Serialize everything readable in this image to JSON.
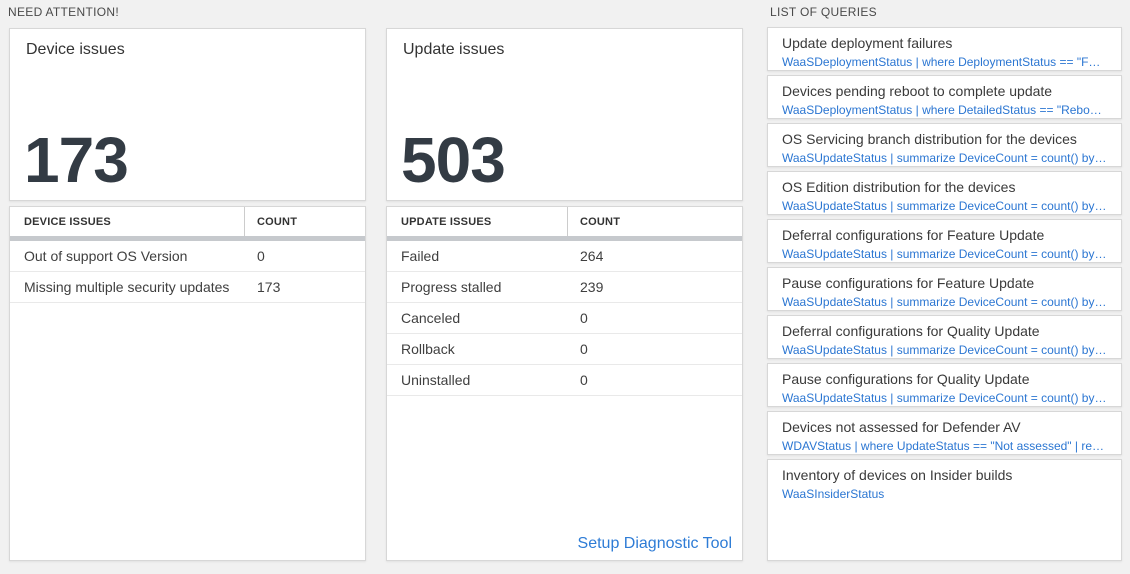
{
  "need_attention": {
    "header": "NEED ATTENTION!",
    "cards": [
      {
        "title": "Device issues",
        "value": "173",
        "table": {
          "columns": [
            "DEVICE ISSUES",
            "COUNT"
          ],
          "rows": [
            [
              "Out of support OS Version",
              "0"
            ],
            [
              "Missing multiple security updates",
              "173"
            ]
          ]
        }
      },
      {
        "title": "Update issues",
        "value": "503",
        "table": {
          "columns": [
            "UPDATE ISSUES",
            "COUNT"
          ],
          "rows": [
            [
              "Failed",
              "264"
            ],
            [
              "Progress stalled",
              "239"
            ],
            [
              "Canceled",
              "0"
            ],
            [
              "Rollback",
              "0"
            ],
            [
              "Uninstalled",
              "0"
            ]
          ]
        },
        "footer_link": "Setup Diagnostic Tool"
      }
    ]
  },
  "queries": {
    "header": "LIST OF QUERIES",
    "items": [
      {
        "title": "Update deployment failures",
        "query": "WaaSDeploymentStatus | where DeploymentStatus == \"Failed\" |..."
      },
      {
        "title": "Devices pending reboot to complete update",
        "query": "WaaSDeploymentStatus | where DetailedStatus == \"Reboot pend..."
      },
      {
        "title": "OS Servicing branch distribution for the devices",
        "query": "WaaSUpdateStatus | summarize DeviceCount = count() by OSSer..."
      },
      {
        "title": "OS Edition distribution for the devices",
        "query": "WaaSUpdateStatus | summarize DeviceCount = count() by OSEdit..."
      },
      {
        "title": "Deferral configurations for Feature Update",
        "query": "WaaSUpdateStatus | summarize DeviceCount = count() by Featur..."
      },
      {
        "title": "Pause configurations for Feature Update",
        "query": "WaaSUpdateStatus | summarize DeviceCount = count() by Featur..."
      },
      {
        "title": "Deferral configurations for Quality Update",
        "query": "WaaSUpdateStatus | summarize DeviceCount = count() by Qualit..."
      },
      {
        "title": "Pause configurations for Quality Update",
        "query": "WaaSUpdateStatus | summarize DeviceCount = count() by Qualit..."
      },
      {
        "title": "Devices not assessed for Defender AV",
        "query": "WDAVStatus | where UpdateStatus == \"Not assessed\" | render ta..."
      },
      {
        "title": "Inventory of devices on Insider builds",
        "query": "WaaSInsiderStatus"
      }
    ]
  },
  "colors": {
    "accent_link": "#2e7cd6",
    "query_text": "#2b76d2",
    "big_number": "#333b44",
    "page_background": "#f1f1f1"
  }
}
